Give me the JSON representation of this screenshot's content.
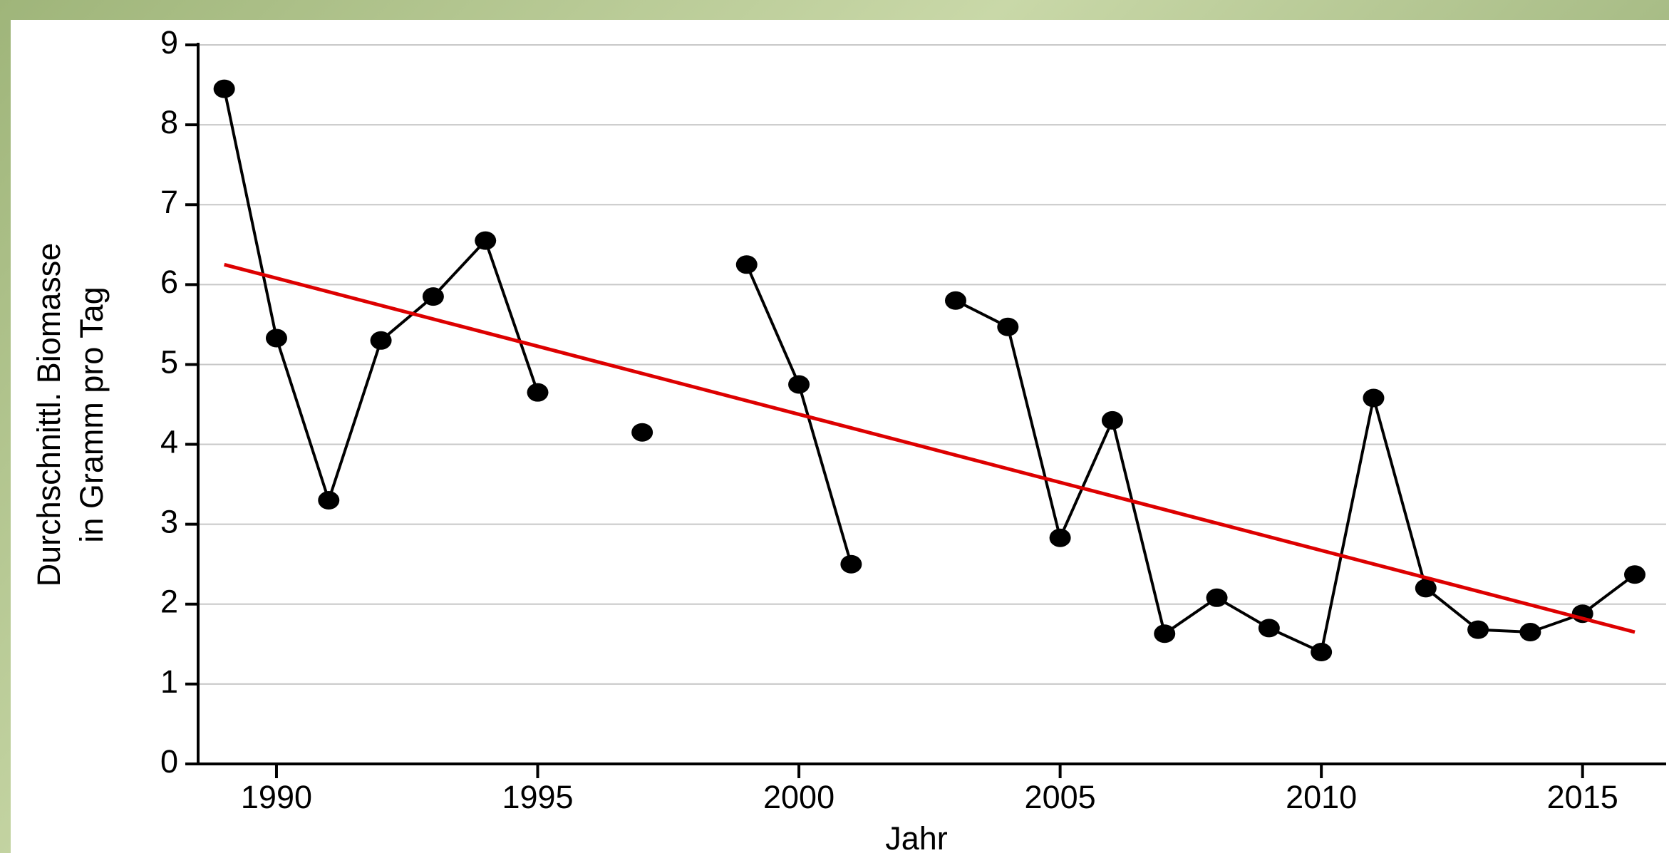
{
  "chart_data": {
    "type": "line",
    "xlabel": "Jahr",
    "ylabel": [
      "Durchschnittl. Biomasse",
      "in Gramm pro Tag"
    ],
    "x": [
      1989,
      1990,
      1991,
      1992,
      1993,
      1994,
      1995,
      1996,
      1997,
      1998,
      1999,
      2000,
      2001,
      2002,
      2003,
      2004,
      2005,
      2006,
      2007,
      2008,
      2009,
      2010,
      2011,
      2012,
      2013,
      2014,
      2015,
      2016
    ],
    "series": [
      {
        "color": "#000000",
        "values": [
          8.45,
          5.33,
          3.3,
          5.3,
          5.85,
          6.55,
          4.65,
          null,
          4.15,
          null,
          6.25,
          4.75,
          2.5,
          null,
          5.8,
          5.47,
          2.83,
          4.3,
          1.63,
          2.08,
          1.7,
          1.4,
          4.58,
          2.2,
          1.68,
          1.65,
          1.88,
          2.37
        ]
      }
    ],
    "trend": {
      "color": "#dd0000",
      "x": [
        1989,
        2016
      ],
      "values": [
        6.25,
        1.65
      ]
    },
    "xlim": [
      1988.5,
      2016.6
    ],
    "xticks": [
      1990,
      1995,
      2000,
      2005,
      2010,
      2015
    ],
    "ylim": [
      0,
      9
    ],
    "yticks": [
      0,
      1,
      2,
      3,
      4,
      5,
      6,
      7,
      8,
      9
    ],
    "grid": true
  }
}
